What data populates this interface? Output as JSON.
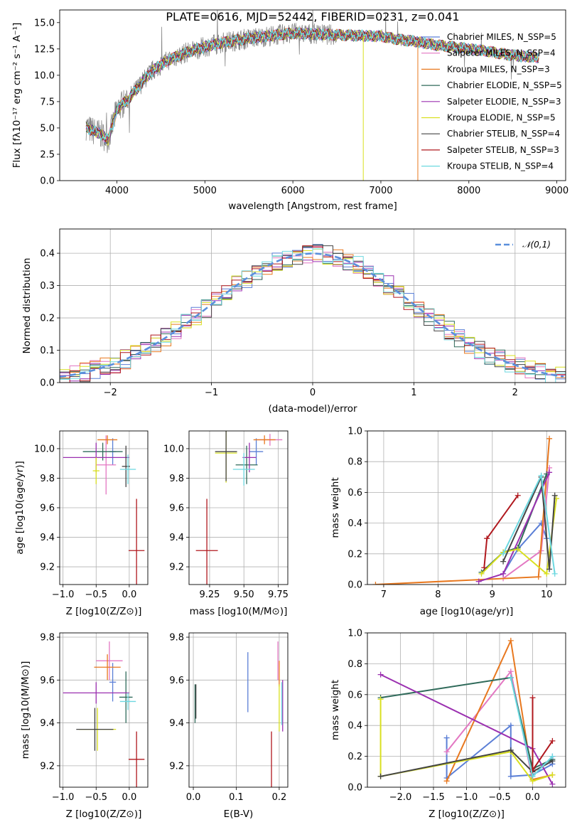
{
  "colors": [
    "#5b7fd6",
    "#e377c2",
    "#e8781f",
    "#2f6a5a",
    "#9b30b0",
    "#d9e020",
    "#444444",
    "#b0181e",
    "#6cd8e0"
  ],
  "chart_data": [
    {
      "id": "spectrum",
      "type": "line",
      "title": "PLATE=0616, MJD=52442, FIBERID=0231, z=0.041",
      "xlabel": "wavelength [Angstrom, rest frame]",
      "ylabel": "Flux [fλ10⁻¹⁷ erg cm⁻² s⁻¹ A⁻¹]",
      "xlim": [
        3350,
        9100
      ],
      "ylim": [
        0,
        16.2
      ],
      "xticks": [
        4000,
        5000,
        6000,
        7000,
        8000,
        9000
      ],
      "yticks": [
        0.0,
        2.5,
        5.0,
        7.5,
        10.0,
        12.5,
        15.0
      ],
      "data_color": "#888888",
      "continuum": {
        "x": [
          3650,
          3700,
          3800,
          3900,
          3960,
          4000,
          4100,
          4200,
          4300,
          4400,
          4500,
          4600,
          4800,
          5000,
          5200,
          5500,
          5800,
          6000,
          6300,
          6600,
          7000,
          7200,
          7400,
          7600,
          7800,
          8000,
          8200,
          8400,
          8600,
          8800
        ],
        "y": [
          5.2,
          4.8,
          4.5,
          3.9,
          5.5,
          6.8,
          7.5,
          8.4,
          9.5,
          10.4,
          11.0,
          11.5,
          12.2,
          12.7,
          13.1,
          13.5,
          13.8,
          14.0,
          13.9,
          13.8,
          13.7,
          13.4,
          13.2,
          12.9,
          12.7,
          12.5,
          12.3,
          12.0,
          11.8,
          11.7
        ]
      },
      "legend": [
        {
          "label": "Chabrier MILES, N_SSP=5"
        },
        {
          "label": "Salpeter MILES, N_SSP=4"
        },
        {
          "label": "Kroupa MILES, N_SSP=3"
        },
        {
          "label": "Chabrier ELODIE, N_SSP=5"
        },
        {
          "label": "Salpeter ELODIE, N_SSP=3"
        },
        {
          "label": "Kroupa ELODIE, N_SSP=5"
        },
        {
          "label": "Chabrier STELIB, N_SSP=4"
        },
        {
          "label": "Salpeter STELIB, N_SSP=3"
        },
        {
          "label": "Kroupa STELIB, N_SSP=4"
        }
      ],
      "legend_placement": "right",
      "spikes": [
        {
          "x": 6800,
          "y": 0.0
        },
        {
          "x": 7420,
          "y": 0.0
        }
      ]
    },
    {
      "id": "residuals",
      "type": "line",
      "xlabel": "(data-model)/error",
      "ylabel": "Normed distribution",
      "xlim": [
        -2.5,
        2.5
      ],
      "ylim": [
        0,
        0.475
      ],
      "xticks": [
        -2,
        -1,
        0,
        1,
        2
      ],
      "yticks": [
        0.0,
        0.1,
        0.2,
        0.3,
        0.4
      ],
      "grid": true,
      "reference_curve": {
        "name": "𝒩(0,1)",
        "style": "dashed",
        "color": "#5b8fdc"
      },
      "bin_width": 0.1
    },
    {
      "id": "age_vs_Z",
      "type": "scatter",
      "xlabel": "Z [log10(Z/Z⊙)]",
      "ylabel": "age  [log10(age/yr)]",
      "xlim": [
        -1.05,
        0.28
      ],
      "ylim": [
        9.08,
        10.12
      ],
      "xticks": [
        -1.0,
        -0.5,
        0.0
      ],
      "yticks": [
        9.2,
        9.4,
        9.6,
        9.8,
        10.0
      ],
      "points": [
        {
          "x": -0.25,
          "y": 9.98,
          "xerr": 0.05,
          "yerr": 0.09
        },
        {
          "x": -0.35,
          "y": 9.89,
          "xerr": 0.15,
          "yerr": 0.2
        },
        {
          "x": -0.33,
          "y": 10.06,
          "xerr": 0.15,
          "yerr": 0.03
        },
        {
          "x": -0.4,
          "y": 9.98,
          "xerr": 0.3,
          "yerr": 0.06
        },
        {
          "x": -0.5,
          "y": 9.94,
          "xerr": 0.5,
          "yerr": 0.1
        },
        {
          "x": -0.5,
          "y": 9.85,
          "xerr": 0.05,
          "yerr": 0.09
        },
        {
          "x": -0.05,
          "y": 9.88,
          "xerr": 0.06,
          "yerr": 0.14
        },
        {
          "x": 0.11,
          "y": 9.31,
          "xerr": 0.12,
          "yerr": 0.35
        },
        {
          "x": -0.02,
          "y": 9.86,
          "xerr": 0.12,
          "yerr": 0.1
        }
      ]
    },
    {
      "id": "age_vs_mass",
      "type": "scatter",
      "xlabel": "mass [log10(M/M⊙)]",
      "xlim": [
        9.1,
        9.82
      ],
      "ylim": [
        9.08,
        10.12
      ],
      "xticks": [
        9.25,
        9.5,
        9.75
      ],
      "yticks": [
        9.2,
        9.4,
        9.6,
        9.8,
        10.0
      ],
      "points": [
        {
          "x": 9.59,
          "y": 9.98,
          "xerr": 0.05,
          "yerr": 0.09
        },
        {
          "x": 9.69,
          "y": 10.06,
          "xerr": 0.09,
          "yerr": 0.04
        },
        {
          "x": 9.65,
          "y": 10.06,
          "xerr": 0.08,
          "yerr": 0.03
        },
        {
          "x": 9.52,
          "y": 9.89,
          "xerr": 0.08,
          "yerr": 0.13
        },
        {
          "x": 9.54,
          "y": 9.94,
          "xerr": 0.05,
          "yerr": 0.1
        },
        {
          "x": 9.37,
          "y": 9.97,
          "xerr": 0.08,
          "yerr": 0.2
        },
        {
          "x": 9.37,
          "y": 9.98,
          "xerr": 0.08,
          "yerr": 0.2
        },
        {
          "x": 9.23,
          "y": 9.31,
          "xerr": 0.08,
          "yerr": 0.35
        },
        {
          "x": 9.5,
          "y": 9.86,
          "xerr": 0.08,
          "yerr": 0.11
        }
      ]
    },
    {
      "id": "weight_vs_age",
      "type": "line",
      "xlabel": "age  [log10(age/yr)]",
      "ylabel": "mass weight",
      "xlim": [
        6.7,
        10.35
      ],
      "ylim": [
        0,
        1.0
      ],
      "xticks": [
        7,
        8,
        9,
        10
      ],
      "yticks": [
        0.0,
        0.2,
        0.4,
        0.6,
        0.8,
        1.0
      ],
      "series": [
        {
          "x": [
            9.2,
            9.47,
            9.9,
            10.0
          ],
          "y": [
            0.07,
            0.23,
            0.4,
            0.3
          ]
        },
        {
          "x": [
            9.2,
            9.9,
            10.05
          ],
          "y": [
            0.04,
            0.22,
            0.76
          ]
        },
        {
          "x": [
            6.85,
            9.85,
            10.05
          ],
          "y": [
            0.0,
            0.05,
            0.95
          ]
        },
        {
          "x": [
            8.8,
            9.2,
            9.47,
            10.0
          ],
          "y": [
            0.08,
            0.21,
            0.24,
            0.72
          ]
        },
        {
          "x": [
            8.75,
            9.2,
            10.05
          ],
          "y": [
            0.02,
            0.07,
            0.73
          ]
        },
        {
          "x": [
            8.8,
            9.2,
            9.47,
            10.0,
            10.18
          ],
          "y": [
            0.07,
            0.21,
            0.23,
            0.07,
            0.56
          ]
        },
        {
          "x": [
            9.2,
            9.9,
            10.05,
            10.15
          ],
          "y": [
            0.15,
            0.7,
            0.1,
            0.58
          ]
        },
        {
          "x": [
            8.85,
            8.9,
            9.47
          ],
          "y": [
            0.11,
            0.3,
            0.58
          ]
        },
        {
          "x": [
            9.2,
            9.9,
            10.15
          ],
          "y": [
            0.2,
            0.71,
            0.07
          ]
        }
      ]
    },
    {
      "id": "mass_vs_Z",
      "type": "scatter",
      "xlabel": "Z [log10(Z/Z⊙)]",
      "ylabel": "mass [log10(M/M⊙)]",
      "xlim": [
        -1.05,
        0.28
      ],
      "ylim": [
        9.1,
        9.82
      ],
      "xticks": [
        -1.0,
        -0.5,
        0.0
      ],
      "yticks": [
        9.2,
        9.4,
        9.6,
        9.8
      ],
      "points": [
        {
          "x": -0.25,
          "y": 9.59,
          "xerr": 0.05,
          "yerr": 0.09
        },
        {
          "x": -0.3,
          "y": 9.69,
          "xerr": 0.2,
          "yerr": 0.09
        },
        {
          "x": -0.33,
          "y": 9.66,
          "xerr": 0.2,
          "yerr": 0.06
        },
        {
          "x": -0.05,
          "y": 9.52,
          "xerr": 0.1,
          "yerr": 0.12
        },
        {
          "x": -0.5,
          "y": 9.54,
          "xerr": 0.5,
          "yerr": 0.05
        },
        {
          "x": -0.48,
          "y": 9.37,
          "xerr": 0.28,
          "yerr": 0.1
        },
        {
          "x": -0.52,
          "y": 9.37,
          "xerr": 0.28,
          "yerr": 0.1
        },
        {
          "x": 0.11,
          "y": 9.23,
          "xerr": 0.12,
          "yerr": 0.13
        },
        {
          "x": -0.02,
          "y": 9.5,
          "xerr": 0.12,
          "yerr": 0.04
        }
      ]
    },
    {
      "id": "mass_vs_ebv",
      "type": "scatter",
      "xlabel": "E(B-V)",
      "xlim": [
        -0.01,
        0.22
      ],
      "ylim": [
        9.1,
        9.82
      ],
      "xticks": [
        0.0,
        0.1,
        0.2
      ],
      "yticks": [
        9.2,
        9.4,
        9.6,
        9.8
      ],
      "points": [
        {
          "x": 0.127,
          "y": 9.59,
          "xerr": 0.0,
          "yerr": 0.14
        },
        {
          "x": 0.197,
          "y": 9.69,
          "xerr": 0.0,
          "yerr": 0.09
        },
        {
          "x": 0.2,
          "y": 9.63,
          "xerr": 0.0,
          "yerr": 0.06
        },
        {
          "x": 0.004,
          "y": 9.49,
          "xerr": 0.0,
          "yerr": 0.09
        },
        {
          "x": 0.208,
          "y": 9.48,
          "xerr": 0.0,
          "yerr": 0.12
        },
        {
          "x": 0.2,
          "y": 9.47,
          "xerr": 0.0,
          "yerr": 0.11
        },
        {
          "x": 0.006,
          "y": 9.5,
          "xerr": 0.0,
          "yerr": 0.08
        },
        {
          "x": 0.182,
          "y": 9.23,
          "xerr": 0.0,
          "yerr": 0.13
        },
        {
          "x": 0.206,
          "y": 9.49,
          "xerr": 0.0,
          "yerr": 0.1
        }
      ]
    },
    {
      "id": "weight_vs_Z",
      "type": "line",
      "xlabel": "Z [log10(Z/Z⊙)]",
      "ylabel": "mass weight",
      "xlim": [
        -2.5,
        0.5
      ],
      "ylim": [
        0,
        1.0
      ],
      "xticks": [
        -2.0,
        -1.5,
        -1.0,
        -0.5,
        0.0
      ],
      "yticks": [
        0.0,
        0.2,
        0.4,
        0.6,
        0.8,
        1.0
      ],
      "series": [
        {
          "x": [
            -1.3,
            -1.3,
            -0.33,
            -0.33,
            0.0,
            0.3,
            0.3
          ],
          "y": [
            0.32,
            0.06,
            0.4,
            0.07,
            0.08,
            0.15,
            0.2
          ]
        },
        {
          "x": [
            -1.3,
            -0.33,
            0.0,
            0.3
          ],
          "y": [
            0.23,
            0.75,
            0.04,
            0.08
          ]
        },
        {
          "x": [
            -1.3,
            -0.33,
            0.0,
            0.3
          ],
          "y": [
            0.04,
            0.95,
            0.05,
            0.08
          ]
        },
        {
          "x": [
            -2.3,
            -0.33,
            0.0,
            0.3
          ],
          "y": [
            0.58,
            0.71,
            0.12,
            0.18
          ]
        },
        {
          "x": [
            -2.3,
            0.0,
            0.3
          ],
          "y": [
            0.73,
            0.25,
            0.02
          ]
        },
        {
          "x": [
            -2.3,
            -2.3,
            -0.33,
            0.0,
            0.3
          ],
          "y": [
            0.57,
            0.07,
            0.23,
            0.04,
            0.08
          ]
        },
        {
          "x": [
            -2.3,
            -0.33,
            0.0,
            0.3
          ],
          "y": [
            0.07,
            0.24,
            0.1,
            0.17
          ]
        },
        {
          "x": [
            0.0,
            0.0,
            0.3
          ],
          "y": [
            0.58,
            0.11,
            0.3
          ]
        },
        {
          "x": [
            -0.33,
            0.0,
            0.3
          ],
          "y": [
            0.71,
            0.07,
            0.2
          ]
        }
      ]
    }
  ]
}
